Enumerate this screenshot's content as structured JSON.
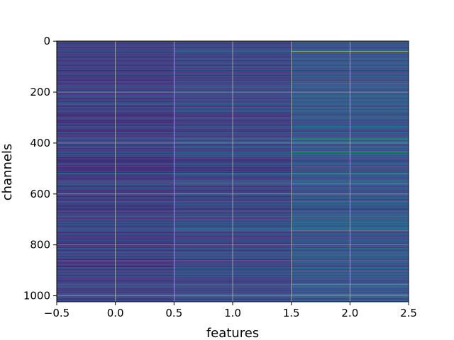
{
  "chart_data": {
    "type": "heatmap",
    "title": "",
    "xlabel": "features",
    "ylabel": "channels",
    "xlim": [
      -0.5,
      2.5
    ],
    "ylim": [
      1023.5,
      -0.5
    ],
    "y_inverted": true,
    "x_ticks": [
      -0.5,
      0.0,
      0.5,
      1.0,
      1.5,
      2.0,
      2.5
    ],
    "x_tick_labels": [
      "−0.5",
      "0.0",
      "0.5",
      "1.0",
      "1.5",
      "2.0",
      "2.5"
    ],
    "y_ticks": [
      0,
      200,
      400,
      600,
      800,
      1000
    ],
    "y_tick_labels": [
      "0",
      "200",
      "400",
      "600",
      "800",
      "1000"
    ],
    "n_rows": 1024,
    "n_cols": 3,
    "grid": true,
    "colormap": "viridis",
    "legend": "none",
    "rows_are_stripes": true,
    "highlight_rows": [
      {
        "row": 40,
        "values": [
          0.35,
          0.55,
          0.95
        ]
      },
      {
        "row": 165,
        "values": [
          0.3,
          0.4,
          0.7
        ]
      },
      {
        "row": 295,
        "values": [
          0.3,
          0.35,
          0.65
        ]
      },
      {
        "row": 385,
        "values": [
          0.3,
          0.45,
          0.7
        ]
      },
      {
        "row": 435,
        "values": [
          0.4,
          0.5,
          0.75
        ]
      },
      {
        "row": 520,
        "values": [
          0.35,
          0.45,
          0.7
        ]
      },
      {
        "row": 560,
        "values": [
          0.45,
          0.6,
          0.75
        ]
      },
      {
        "row": 745,
        "values": [
          0.35,
          0.5,
          0.7
        ]
      },
      {
        "row": 955,
        "values": [
          0.4,
          0.5,
          0.8
        ]
      },
      {
        "row": 995,
        "values": [
          0.35,
          0.5,
          0.7
        ]
      }
    ]
  }
}
